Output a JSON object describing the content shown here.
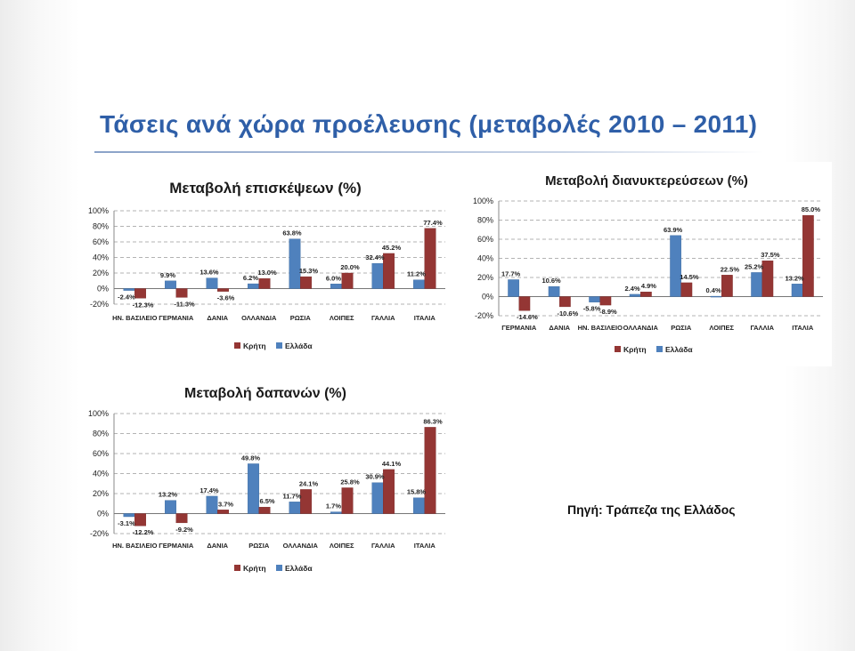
{
  "slide": {
    "title": "Τάσεις ανά χώρα προέλευσης (μεταβολές 2010 – 2011)",
    "source": "Πηγή: Τράπεζα της Ελλάδος"
  },
  "colors": {
    "crete": "#943634",
    "greece": "#4f81bd",
    "title": "#2f5fa8"
  },
  "chart_data": [
    {
      "type": "bar",
      "title": "Μεταβολή επισκέψεων (%)",
      "categories": [
        "ΗΝ. ΒΑΣΙΛΕΙΟ",
        "ΓΕΡΜΑΝΙΑ",
        "ΔΑΝΙΑ",
        "ΟΛΛΑΝΔΙΑ",
        "ΡΩΣΙΑ",
        "ΛΟΙΠΕΣ",
        "ΓΑΛΛΙΑ",
        "ΙΤΑΛΙΑ"
      ],
      "series": [
        {
          "name": "Κρήτη",
          "values": [
            -12.3,
            -11.3,
            -3.6,
            13.0,
            15.3,
            20.0,
            45.2,
            77.4
          ],
          "labels": [
            "-12.3%",
            "-11.3%",
            "-3.6%",
            "13.0%",
            "15.3%",
            "20.0%",
            "45.2%",
            "77.4%"
          ]
        },
        {
          "name": "Ελλάδα",
          "values": [
            -2.4,
            9.9,
            13.6,
            6.2,
            63.8,
            6.0,
            32.4,
            11.2
          ],
          "labels": [
            "-2.4%",
            "9.9%",
            "13.6%",
            "6.2%",
            "63.8%",
            "6.0%",
            "32.4%",
            "11.2%"
          ]
        }
      ],
      "yticks": [
        "-20%",
        "0%",
        "20%",
        "40%",
        "60%",
        "80%",
        "100%"
      ],
      "ylim": [
        -20,
        100
      ],
      "legend_position": "bottom",
      "grid": true
    },
    {
      "type": "bar",
      "title": "Μεταβολή διανυκτερεύσεων (%)",
      "categories": [
        "ΓΕΡΜΑΝΙΑ",
        "ΔΑΝΙΑ",
        "ΗΝ. ΒΑΣΙΛΕΙΟ",
        "ΟΛΛΑΝΔΙΑ",
        "ΡΩΣΙΑ",
        "ΛΟΙΠΕΣ",
        "ΓΑΛΛΙΑ",
        "ΙΤΑΛΙΑ"
      ],
      "series": [
        {
          "name": "Κρήτη",
          "values": [
            -14.6,
            -10.6,
            -8.9,
            4.9,
            14.5,
            22.5,
            37.5,
            85.0
          ],
          "labels": [
            "-14.6%",
            "-10.6%",
            "-8.9%",
            "4.9%",
            "14.5%",
            "22.5%",
            "37.5%",
            "85.0%"
          ]
        },
        {
          "name": "Ελλάδα",
          "values": [
            17.7,
            10.6,
            -5.8,
            2.4,
            63.9,
            0.4,
            25.2,
            13.2
          ],
          "labels": [
            "17.7%",
            "10.6%",
            "-5.8%",
            "2.4%",
            "63.9%",
            "0.4%",
            "25.2%",
            "13.2%"
          ]
        }
      ],
      "yticks": [
        "-20%",
        "0%",
        "20%",
        "40%",
        "60%",
        "80%",
        "100%"
      ],
      "ylim": [
        -20,
        100
      ],
      "legend_position": "bottom",
      "grid": true
    },
    {
      "type": "bar",
      "title": "Μεταβολή δαπανών (%)",
      "categories": [
        "ΗΝ. ΒΑΣΙΛΕΙΟ",
        "ΓΕΡΜΑΝΙΑ",
        "ΔΑΝΙΑ",
        "ΡΩΣΙΑ",
        "ΟΛΛΑΝΔΙΑ",
        "ΛΟΙΠΕΣ",
        "ΓΑΛΛΙΑ",
        "ΙΤΑΛΙΑ"
      ],
      "series": [
        {
          "name": "Κρήτη",
          "values": [
            -12.2,
            -9.2,
            3.7,
            6.5,
            24.1,
            25.8,
            44.1,
            86.3
          ],
          "labels": [
            "-12.2%",
            "-9.2%",
            "3.7%",
            "6.5%",
            "24.1%",
            "25.8%",
            "44.1%",
            "86.3%"
          ]
        },
        {
          "name": "Ελλάδα",
          "values": [
            -3.1,
            13.2,
            17.4,
            49.8,
            11.7,
            1.7,
            30.9,
            15.8
          ],
          "labels": [
            "-3.1%",
            "13.2%",
            "17.4%",
            "49.8%",
            "11.7%",
            "1.7%",
            "30.9%",
            "15.8%"
          ]
        }
      ],
      "yticks": [
        "-20%",
        "0%",
        "20%",
        "40%",
        "60%",
        "80%",
        "100%"
      ],
      "ylim": [
        -20,
        100
      ],
      "legend_position": "bottom",
      "grid": true
    }
  ]
}
